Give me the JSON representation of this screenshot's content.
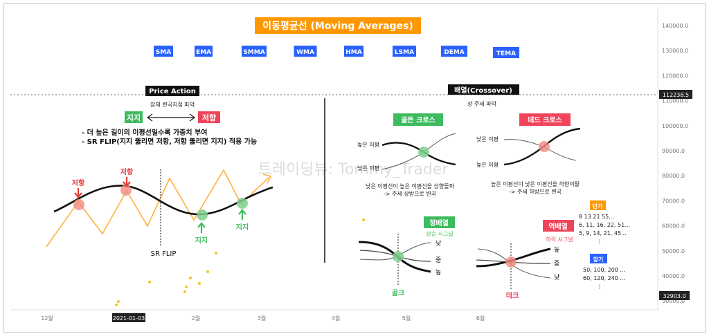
{
  "title": "이동평균선 (Moving Averages)",
  "ma_types": [
    "SMA",
    "EMA",
    "SMMA",
    "WMA",
    "HMA",
    "LSMA",
    "DEMA",
    "TEMA"
  ],
  "watermark": "트레이딩뷰: Tommy_Trader",
  "colors": {
    "accent_orange": "#ff9800",
    "blue_tag": "#2962ff",
    "green": "#3dbb5e",
    "red": "#f0445a",
    "black_tag": "#111111",
    "price_line": "#ffb13d",
    "yellow_dot": "#f5c518"
  },
  "price_axis": {
    "ticks": [
      "140000.0",
      "130000.0",
      "120000.0",
      "110000.0",
      "100000.0",
      "90000.0",
      "80000.0",
      "70000.0",
      "60000.0",
      "50000.0",
      "40000.0",
      "30000.0"
    ],
    "current_price": "112238.5",
    "low_price": "32903.0"
  },
  "time_axis": {
    "ticks": [
      "12월",
      "2021-01-03",
      "2월",
      "3월",
      "4월",
      "5월",
      "6월"
    ],
    "highlight": "2021-01-03"
  },
  "price_action": {
    "heading": "Price Action",
    "subheading": "잠재 변곡지점 파악",
    "support_tag": "지지",
    "resistance_tag": "저항",
    "bullet1": "- 더 높은 길이의 이평선일수록 가중치 부여",
    "bullet2": "- SR FLIP(지지 뚫리면 저항, 저항 뚫리면 지지) 적용 가능",
    "resistance_label": "저항",
    "support_label": "지지",
    "sr_flip": "SR FLIP"
  },
  "crossover": {
    "heading": "배열(Crossover)",
    "subheading": "장 주세 파악",
    "golden_cross": {
      "tag": "골든 크로스",
      "high_label": "높은 이평",
      "low_label": "낮은 이평",
      "desc1": "낮은 이평선이 높은 이평선을 상향돌파",
      "desc2": "-> 주세 상방으로 변곡"
    },
    "dead_cross": {
      "tag": "데드 크로스",
      "low_label": "낮은 이평",
      "high_label": "높은 이평",
      "desc1": "높은 이평선이 낮은 이평선을 하향이탈",
      "desc2": "-> 주세 하방으로 변곡"
    },
    "bull_align": {
      "tag": "정배열",
      "signal": "상승 시그널",
      "labels": [
        "낮",
        "중",
        "높"
      ],
      "short": "골크"
    },
    "bear_align": {
      "tag": "역배열",
      "signal": "하락 시그널",
      "labels": [
        "높",
        "중",
        "낮"
      ],
      "short": "데크"
    }
  },
  "periods": {
    "short_tag": "단기",
    "short_values": [
      "8 13 21 55...",
      "6, 11, 16, 22, 51...",
      "5, 9, 14, 21, 45..."
    ],
    "long_tag": "장기",
    "long_values": [
      "50, 100, 200 ...",
      "60, 120, 240 ..."
    ]
  }
}
